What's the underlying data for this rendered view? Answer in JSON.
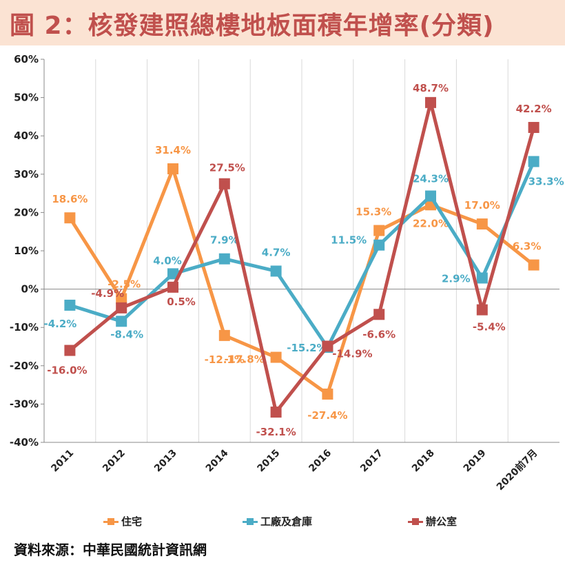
{
  "title": "圖 2：核發建照總樓地板面積年增率(分類)",
  "source": "資料來源：中華民國統計資訊網",
  "chart_data": {
    "type": "line",
    "title": "圖 2：核發建照總樓地板面積年增率(分類)",
    "categories": [
      "2011",
      "2012",
      "2013",
      "2014",
      "2015",
      "2016",
      "2017",
      "2018",
      "2019",
      "2020前7月"
    ],
    "y_ticks": [
      "60%",
      "50%",
      "40%",
      "30%",
      "20%",
      "10%",
      "0%",
      "-10%",
      "-20%",
      "-30%",
      "-40%"
    ],
    "ylim": [
      -40,
      60
    ],
    "ylabel": "",
    "xlabel": "",
    "grid": "vertical",
    "legend_position": "bottom",
    "series": [
      {
        "name": "住宅",
        "color": "#f79646",
        "values": [
          18.6,
          -2.5,
          31.4,
          -12.1,
          -17.8,
          -27.4,
          15.3,
          22.0,
          17.0,
          6.3
        ],
        "labels": [
          "18.6%",
          "-2.5%",
          "31.4%",
          "-12.1%",
          "-17.8%",
          "-27.4%",
          "15.3%",
          "22.0%",
          "17.0%",
          "6.3%"
        ]
      },
      {
        "name": "工廠及倉庫",
        "color": "#4bacc6",
        "values": [
          -4.2,
          -8.4,
          4.0,
          7.9,
          4.7,
          -15.2,
          11.5,
          24.3,
          2.9,
          33.3
        ],
        "labels": [
          "-4.2%",
          "-8.4%",
          "4.0%",
          "7.9%",
          "4.7%",
          "-15.2%",
          "11.5%",
          "24.3%",
          "2.9%",
          "33.3%"
        ]
      },
      {
        "name": "辦公室",
        "color": "#c0504d",
        "values": [
          -16.0,
          -4.9,
          0.5,
          27.5,
          -32.1,
          -14.9,
          -6.6,
          48.7,
          -5.4,
          42.2
        ],
        "labels": [
          "-16.0%",
          "-4.9%",
          "0.5%",
          "27.5%",
          "-32.1%",
          "-14.9%",
          "-6.6%",
          "48.7%",
          "-5.4%",
          "42.2%"
        ]
      }
    ]
  }
}
